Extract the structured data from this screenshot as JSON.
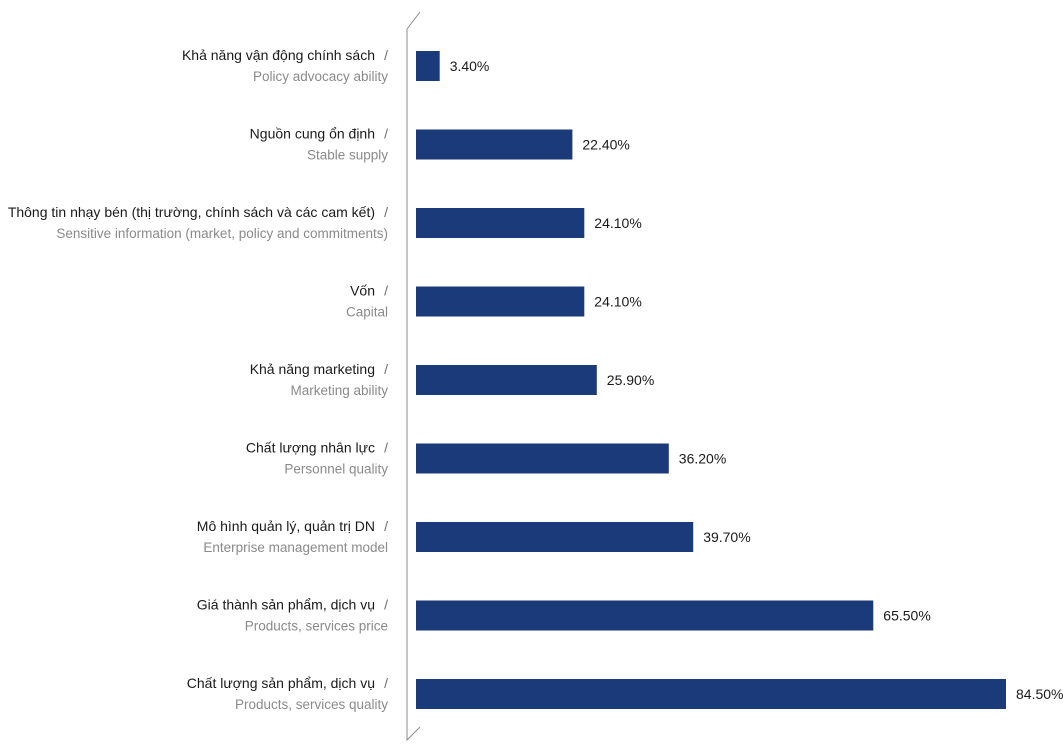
{
  "chart_data": {
    "type": "bar",
    "orientation": "horizontal",
    "categories": [
      {
        "vi": "Khả năng vận động chính sách",
        "en": "Policy advocacy ability"
      },
      {
        "vi": "Nguồn cung ổn định",
        "en": "Stable supply"
      },
      {
        "vi": "Thông tin nhạy bén (thị trường, chính sách và các cam kết)",
        "en": "Sensitive information (market, policy and commitments)"
      },
      {
        "vi": "Vốn",
        "en": "Capital"
      },
      {
        "vi": "Khả năng marketing",
        "en": "Marketing ability"
      },
      {
        "vi": "Chất lượng nhân lực",
        "en": "Personnel quality"
      },
      {
        "vi": "Mô hình quản lý, quản trị DN",
        "en": "Enterprise management model"
      },
      {
        "vi": "Giá thành sản phẩm, dịch vụ",
        "en": "Products, services price"
      },
      {
        "vi": "Chất lượng sản phẩm, dịch vụ",
        "en": "Products, services quality"
      }
    ],
    "values": [
      3.4,
      22.4,
      24.1,
      24.1,
      25.9,
      36.2,
      39.7,
      65.5,
      84.5
    ],
    "value_labels": [
      "3.40%",
      "22.40%",
      "24.10%",
      "24.10%",
      "25.90%",
      "36.20%",
      "39.70%",
      "65.50%",
      "84.50%"
    ],
    "separator": "/",
    "bar_color": "#1b3a7a",
    "title": "",
    "xlabel": "",
    "ylabel": "",
    "xlim": [
      0,
      84.5
    ],
    "grid": false,
    "legend": "none"
  }
}
